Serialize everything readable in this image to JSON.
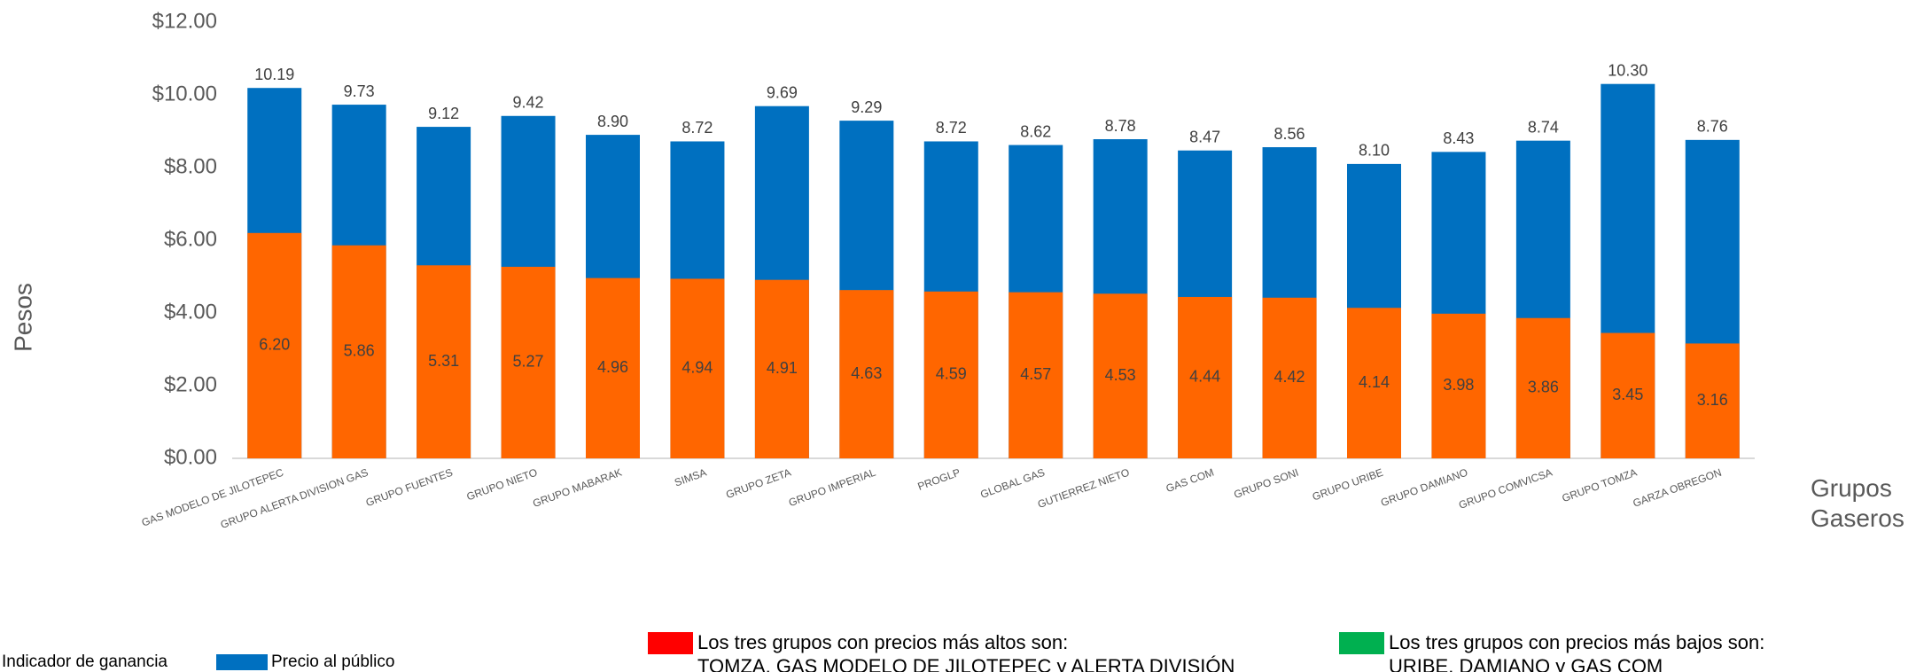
{
  "chart_data": {
    "type": "bar",
    "y_label": "Pesos",
    "x_label": "Grupos Gaseros",
    "categories": [
      "GAS MODELO DE JILOTEPEC",
      "GRUPO ALERTA DIVISION GAS",
      "GRUPO FUENTES",
      "GRUPO NIETO",
      "GRUPO MABARAK",
      "SIMSA",
      "GRUPO ZETA",
      "GRUPO IMPERIAL",
      "PROGLP",
      "GLOBAL GAS",
      "GUTIERREZ NIETO",
      "GAS COM",
      "GRUPO SONI",
      "GRUPO URIBE",
      "GRUPO DAMIANO",
      "GRUPO COMVICSA",
      "GRUPO TOMZA",
      "GARZA OBREGON"
    ],
    "series": [
      {
        "name": "Precio al público",
        "color": "#0070c0",
        "values": [
          10.19,
          9.73,
          9.12,
          9.42,
          8.9,
          8.72,
          9.69,
          9.29,
          8.72,
          8.62,
          8.78,
          8.47,
          8.56,
          8.1,
          8.43,
          8.74,
          10.3,
          8.76
        ],
        "value_labels": [
          "10.19",
          "9.73",
          "9.12",
          "9.42",
          "8.90",
          "8.72",
          "9.69",
          "9.29",
          "8.72",
          "8.62",
          "8.78",
          "8.47",
          "8.56",
          "8.10",
          "8.43",
          "8.74",
          "10.30",
          "8.76"
        ]
      },
      {
        "name": "Indicador de ganancia",
        "color": "#ff6600",
        "values": [
          6.2,
          5.86,
          5.31,
          5.27,
          4.96,
          4.94,
          4.91,
          4.63,
          4.59,
          4.57,
          4.53,
          4.44,
          4.42,
          4.14,
          3.98,
          3.86,
          3.45,
          3.16
        ],
        "value_labels": [
          "6.20",
          "5.86",
          "5.31",
          "5.27",
          "4.96",
          "4.94",
          "4.91",
          "4.63",
          "4.59",
          "4.57",
          "4.53",
          "4.44",
          "4.42",
          "4.14",
          "3.98",
          "3.86",
          "3.45",
          "3.16"
        ]
      }
    ],
    "ylim": [
      0,
      12
    ],
    "yticks": [
      {
        "value": 0,
        "label": "$0.00"
      },
      {
        "value": 2,
        "label": "$2.00"
      },
      {
        "value": 4,
        "label": "$4.00"
      },
      {
        "value": 6,
        "label": "$6.00"
      },
      {
        "value": 8,
        "label": "$8.00"
      },
      {
        "value": 10,
        "label": "$10.00"
      },
      {
        "value": 12,
        "label": "$12.00"
      }
    ],
    "grid": false,
    "notes": [
      {
        "color": "#ff0000",
        "lines": [
          "Los tres grupos con precios más altos son:",
          "TOMZA, GAS MODELO DE JILOTEPEC y ALERTA DIVISIÓN"
        ]
      },
      {
        "color": "#00b050",
        "lines": [
          "Los tres grupos con precios más bajos son:",
          "URIBE, DAMIANO y GAS COM"
        ]
      }
    ]
  }
}
